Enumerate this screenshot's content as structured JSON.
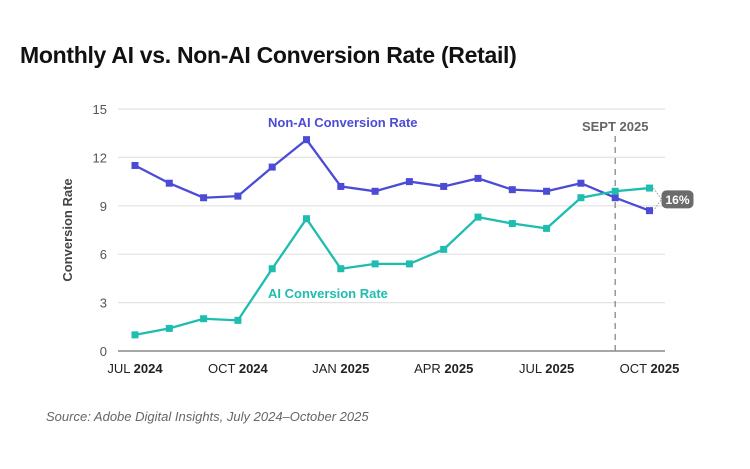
{
  "chart_data": {
    "type": "line",
    "title": "Monthly AI vs. Non-AI Conversion Rate (Retail)",
    "source": "Source: Adobe Digital Insights, July 2024–October 2025",
    "ylabel": "Conversion Rate",
    "xlabel": "",
    "ylim": [
      0,
      15
    ],
    "yticks": [
      0,
      3,
      6,
      9,
      12,
      15
    ],
    "grid": true,
    "x": [
      "Jul 2024",
      "Aug 2024",
      "Sep 2024",
      "Oct 2024",
      "Nov 2024",
      "Dec 2024",
      "Jan 2025",
      "Feb 2025",
      "Mar 2025",
      "Apr 2025",
      "May 2025",
      "Jun 2025",
      "Jul 2025",
      "Aug 2025",
      "Sep 2025",
      "Oct 2025"
    ],
    "xticks": [
      {
        "index": 0,
        "month": "JUL",
        "year": "2024"
      },
      {
        "index": 3,
        "month": "OCT",
        "year": "2024"
      },
      {
        "index": 6,
        "month": "JAN",
        "year": "2025"
      },
      {
        "index": 9,
        "month": "APR",
        "year": "2025"
      },
      {
        "index": 12,
        "month": "JUL",
        "year": "2025"
      },
      {
        "index": 15,
        "month": "OCT",
        "year": "2025"
      }
    ],
    "series": [
      {
        "name": "Non-AI Conversion Rate",
        "color": "#4b4bd6",
        "values": [
          11.5,
          10.4,
          9.5,
          9.6,
          11.4,
          13.1,
          10.2,
          9.9,
          10.5,
          10.2,
          10.7,
          10.0,
          9.9,
          10.4,
          9.5,
          8.7
        ]
      },
      {
        "name": "AI Conversion Rate",
        "color": "#1fbcb0",
        "values": [
          1.0,
          1.4,
          2.0,
          1.9,
          5.1,
          8.2,
          5.1,
          5.4,
          5.4,
          6.3,
          8.3,
          7.9,
          7.6,
          9.5,
          9.9,
          10.1
        ]
      }
    ],
    "annotations": [
      {
        "type": "vline",
        "index": 14,
        "label": "SEPT 2025"
      },
      {
        "type": "badge",
        "index": 15,
        "label": "16%"
      }
    ]
  }
}
